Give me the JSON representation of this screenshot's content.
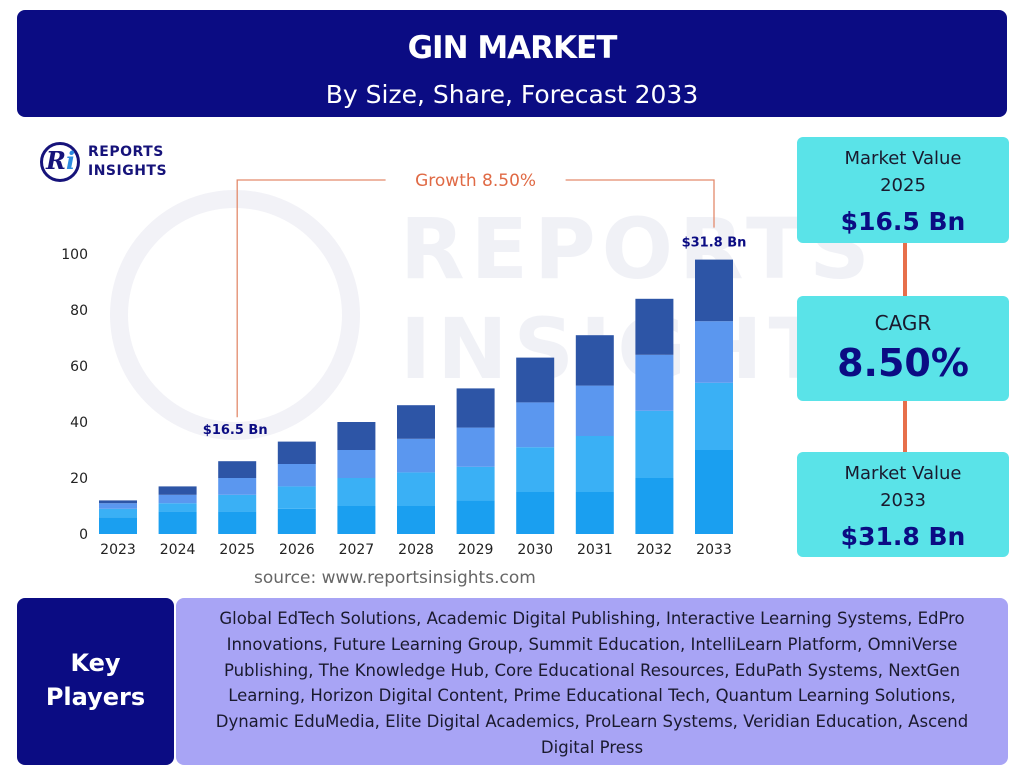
{
  "header": {
    "title": "GIN MARKET",
    "subtitle": "By Size, Share, Forecast 2033"
  },
  "logo": {
    "line1": "REPORTS",
    "line2": "INSIGHTS"
  },
  "source": "source: www.reportsinsights.com",
  "cards": {
    "value_2025": {
      "label_line1": "Market Value",
      "label_line2": "2025",
      "value": "$16.5 Bn"
    },
    "cagr": {
      "label": "CAGR",
      "value": "8.50%"
    },
    "value_2033": {
      "label_line1": "Market Value",
      "label_line2": "2033",
      "value": "$31.8 Bn"
    }
  },
  "key_players": {
    "label_line1": "Key",
    "label_line2": "Players",
    "text": "Global EdTech Solutions, Academic Digital Publishing, Interactive Learning Systems, EdPro Innovations, Future Learning Group, Summit Education, IntelliLearn Platform, OmniVerse Publishing, The Knowledge Hub, Core Educational Resources, EduPath Systems, NextGen Learning, Horizon Digital Content, Prime Educational Tech, Quantum Learning Solutions, Dynamic EduMedia, Elite Digital Academics, ProLearn Systems, Veridian Education, Ascend Digital Press"
  },
  "colors": {
    "header_bg": "#0b0c83",
    "card_bg": "#5ae3e8",
    "connector": "#e76f4b",
    "key_players_bg": "#a8a4f5",
    "segments": [
      "#1a9ff0",
      "#3ab0f5",
      "#5b97ef",
      "#2d55a6"
    ]
  },
  "chart_data": {
    "type": "bar",
    "stacked": true,
    "categories": [
      "2023",
      "2024",
      "2025",
      "2026",
      "2027",
      "2028",
      "2029",
      "2030",
      "2031",
      "2032",
      "2033"
    ],
    "series": [
      {
        "values": [
          6,
          8,
          8,
          9,
          10,
          10,
          12,
          15,
          15,
          20,
          30
        ]
      },
      {
        "values": [
          3,
          3,
          6,
          8,
          10,
          12,
          12,
          16,
          20,
          24,
          24
        ]
      },
      {
        "values": [
          2,
          3,
          6,
          8,
          10,
          12,
          14,
          16,
          18,
          20,
          22
        ]
      },
      {
        "values": [
          1,
          3,
          6,
          8,
          10,
          12,
          14,
          16,
          18,
          20,
          22
        ]
      }
    ],
    "ylim": [
      0,
      100
    ],
    "yticks": [
      0,
      20,
      40,
      60,
      80,
      100
    ],
    "grid": false,
    "annotations": {
      "growth_label": "Growth",
      "growth_value": "8.50%",
      "start_category": "2025",
      "start_label": "$16.5 Bn",
      "end_category": "2033",
      "end_label": "$31.8 Bn"
    }
  }
}
